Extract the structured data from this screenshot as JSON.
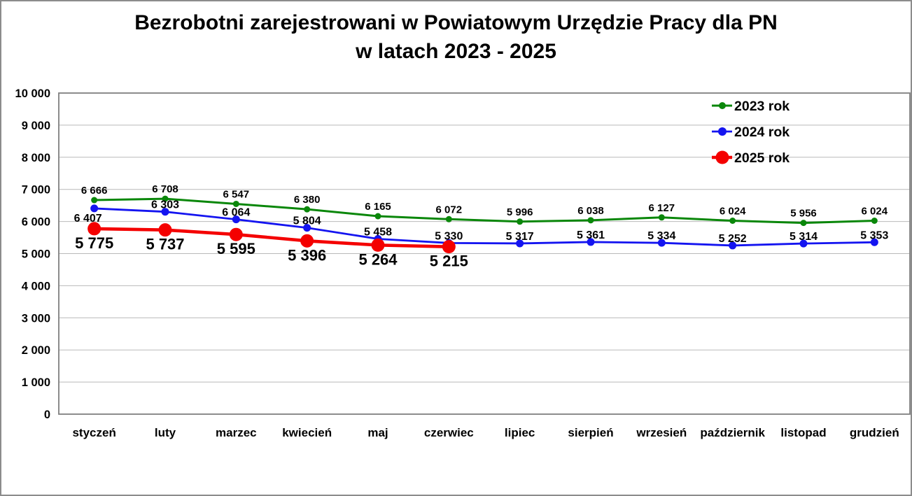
{
  "title": {
    "line1": "Bezrobotni zarejestrowani w Powiatowym Urzędzie Pracy dla PN",
    "line2": "w latach 2023 - 2025"
  },
  "chart_data": {
    "type": "line",
    "title": "Bezrobotni zarejestrowani w Powiatowym Urzędzie Pracy dla PN w latach 2023 - 2025",
    "categories": [
      "styczeń",
      "luty",
      "marzec",
      "kwiecień",
      "maj",
      "czerwiec",
      "lipiec",
      "sierpień",
      "wrzesień",
      "październik",
      "listopad",
      "grudzień"
    ],
    "series": [
      {
        "name": "2023 rok",
        "color": "#0a870a",
        "values": [
          6666,
          6708,
          6547,
          6380,
          6165,
          6072,
          5996,
          6038,
          6127,
          6024,
          5956,
          6024
        ],
        "labels": [
          "6 666",
          "6 708",
          "6 547",
          "6 380",
          "6 165",
          "6 072",
          "5 996",
          "6 038",
          "6 127",
          "6 024",
          "5 956",
          "6 024"
        ],
        "label_position": "above"
      },
      {
        "name": "2024 rok",
        "color": "#1414f0",
        "values": [
          6407,
          6303,
          6064,
          5804,
          5458,
          5330,
          5317,
          5361,
          5334,
          5252,
          5314,
          5353
        ],
        "labels": [
          "6 407",
          "6 303",
          "6 064",
          "5 804",
          "5 458",
          "5 330",
          "5 317",
          "5 361",
          "5 334",
          "5 252",
          "5 314",
          "5 353"
        ],
        "label_position": "above"
      },
      {
        "name": "2025 rok",
        "color": "#f40000",
        "values": [
          5775,
          5737,
          5595,
          5396,
          5264,
          5215,
          null,
          null,
          null,
          null,
          null,
          null
        ],
        "labels": [
          "5 775",
          "5 737",
          "5 595",
          "5 396",
          "5 264",
          "5 215"
        ],
        "label_position": "below"
      }
    ],
    "y_axis": {
      "min": 0,
      "max": 10000,
      "step": 1000,
      "tick_labels": [
        "0",
        "1 000",
        "2 000",
        "3 000",
        "4 000",
        "5 000",
        "6 000",
        "7 000",
        "8 000",
        "9 000",
        "10 000"
      ]
    },
    "grid": true,
    "legend_position": "top-right"
  }
}
